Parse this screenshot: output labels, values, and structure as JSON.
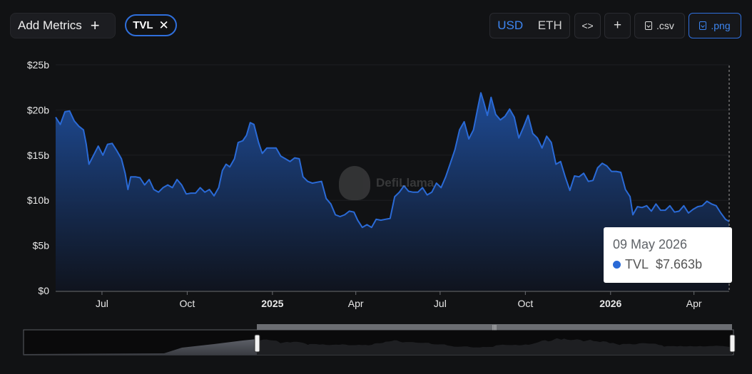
{
  "toolbar": {
    "add_metrics_label": "Add Metrics",
    "add_metrics_icon": "plus-icon",
    "metric_chip_label": "TVL",
    "metric_chip_icon": "close-icon",
    "currency_options": [
      "USD",
      "ETH"
    ],
    "currency_selected": "USD",
    "embed_icon": "code-icon",
    "add_chart_icon": "plus-icon",
    "csv_label": ".csv",
    "png_label": ".png",
    "download_icon": "file-download-icon"
  },
  "watermark": {
    "text": "DefiLlama"
  },
  "tooltip": {
    "date": "09 May 2026",
    "series": "TVL",
    "value": "$7.663b"
  },
  "colors": {
    "background": "#111214",
    "line": "#2a6ad6",
    "accent": "#3d86f2"
  },
  "chart_data": {
    "type": "area",
    "title": "",
    "xlabel": "",
    "ylabel": "",
    "ylim": [
      0,
      25
    ],
    "y_unit": "billion USD",
    "y_ticks": [
      "$0",
      "$5b",
      "$10b",
      "$15b",
      "$20b",
      "$25b"
    ],
    "x_ticks": [
      {
        "label": "Jul",
        "date": "2024-07-01",
        "bold": false
      },
      {
        "label": "Oct",
        "date": "2024-10-01",
        "bold": false
      },
      {
        "label": "2025",
        "date": "2025-01-01",
        "bold": true
      },
      {
        "label": "Apr",
        "date": "2025-04-01",
        "bold": false
      },
      {
        "label": "Jul",
        "date": "2025-07-01",
        "bold": false
      },
      {
        "label": "Oct",
        "date": "2025-10-01",
        "bold": false
      },
      {
        "label": "2026",
        "date": "2026-01-01",
        "bold": true
      },
      {
        "label": "Apr",
        "date": "2026-04-01",
        "bold": false
      }
    ],
    "x_range": [
      "2024-05-12",
      "2026-05-09"
    ],
    "series": [
      {
        "name": "TVL",
        "points": [
          [
            "2024-05-12",
            19.2
          ],
          [
            "2024-05-17",
            18.4
          ],
          [
            "2024-05-22",
            19.8
          ],
          [
            "2024-05-27",
            19.9
          ],
          [
            "2024-06-01",
            18.8
          ],
          [
            "2024-06-06",
            18.2
          ],
          [
            "2024-06-11",
            17.8
          ],
          [
            "2024-06-14",
            16.2
          ],
          [
            "2024-06-17",
            14.0
          ],
          [
            "2024-06-22",
            15.0
          ],
          [
            "2024-06-27",
            16.0
          ],
          [
            "2024-07-02",
            15.0
          ],
          [
            "2024-07-07",
            16.2
          ],
          [
            "2024-07-12",
            16.3
          ],
          [
            "2024-07-17",
            15.5
          ],
          [
            "2024-07-22",
            14.6
          ],
          [
            "2024-07-26",
            13.0
          ],
          [
            "2024-07-29",
            11.2
          ],
          [
            "2024-08-01",
            12.6
          ],
          [
            "2024-08-06",
            12.6
          ],
          [
            "2024-08-11",
            12.5
          ],
          [
            "2024-08-16",
            11.7
          ],
          [
            "2024-08-21",
            12.3
          ],
          [
            "2024-08-26",
            11.2
          ],
          [
            "2024-08-31",
            10.9
          ],
          [
            "2024-09-05",
            11.4
          ],
          [
            "2024-09-10",
            11.7
          ],
          [
            "2024-09-15",
            11.4
          ],
          [
            "2024-09-20",
            12.3
          ],
          [
            "2024-09-25",
            11.7
          ],
          [
            "2024-09-30",
            10.7
          ],
          [
            "2024-10-05",
            10.8
          ],
          [
            "2024-10-10",
            10.8
          ],
          [
            "2024-10-15",
            11.4
          ],
          [
            "2024-10-20",
            10.9
          ],
          [
            "2024-10-25",
            11.2
          ],
          [
            "2024-10-30",
            10.5
          ],
          [
            "2024-11-04",
            11.4
          ],
          [
            "2024-11-08",
            13.3
          ],
          [
            "2024-11-12",
            14.0
          ],
          [
            "2024-11-16",
            13.7
          ],
          [
            "2024-11-21",
            14.6
          ],
          [
            "2024-11-25",
            16.4
          ],
          [
            "2024-11-30",
            16.6
          ],
          [
            "2024-12-04",
            17.2
          ],
          [
            "2024-12-08",
            18.6
          ],
          [
            "2024-12-12",
            18.4
          ],
          [
            "2024-12-17",
            16.4
          ],
          [
            "2024-12-21",
            15.2
          ],
          [
            "2024-12-26",
            15.8
          ],
          [
            "2024-12-31",
            15.8
          ],
          [
            "2025-01-05",
            15.8
          ],
          [
            "2025-01-10",
            14.9
          ],
          [
            "2025-01-15",
            14.6
          ],
          [
            "2025-01-20",
            14.3
          ],
          [
            "2025-01-25",
            14.7
          ],
          [
            "2025-01-30",
            14.6
          ],
          [
            "2025-02-03",
            12.6
          ],
          [
            "2025-02-08",
            12.1
          ],
          [
            "2025-02-13",
            11.9
          ],
          [
            "2025-02-18",
            12.0
          ],
          [
            "2025-02-23",
            12.1
          ],
          [
            "2025-02-28",
            10.2
          ],
          [
            "2025-03-05",
            9.6
          ],
          [
            "2025-03-10",
            8.4
          ],
          [
            "2025-03-15",
            8.2
          ],
          [
            "2025-03-20",
            8.4
          ],
          [
            "2025-03-25",
            8.8
          ],
          [
            "2025-03-30",
            8.7
          ],
          [
            "2025-04-03",
            7.8
          ],
          [
            "2025-04-08",
            7.0
          ],
          [
            "2025-04-13",
            7.3
          ],
          [
            "2025-04-18",
            7.0
          ],
          [
            "2025-04-23",
            7.9
          ],
          [
            "2025-04-28",
            7.8
          ],
          [
            "2025-05-03",
            7.9
          ],
          [
            "2025-05-08",
            8.0
          ],
          [
            "2025-05-13",
            10.4
          ],
          [
            "2025-05-18",
            10.9
          ],
          [
            "2025-05-23",
            11.6
          ],
          [
            "2025-05-28",
            11.0
          ],
          [
            "2025-06-02",
            10.9
          ],
          [
            "2025-06-07",
            10.9
          ],
          [
            "2025-06-12",
            11.4
          ],
          [
            "2025-06-17",
            10.6
          ],
          [
            "2025-06-22",
            10.9
          ],
          [
            "2025-06-27",
            11.9
          ],
          [
            "2025-07-02",
            11.4
          ],
          [
            "2025-07-07",
            12.6
          ],
          [
            "2025-07-12",
            14.1
          ],
          [
            "2025-07-17",
            15.6
          ],
          [
            "2025-07-22",
            17.8
          ],
          [
            "2025-07-27",
            18.7
          ],
          [
            "2025-08-01",
            16.8
          ],
          [
            "2025-08-06",
            17.8
          ],
          [
            "2025-08-11",
            20.4
          ],
          [
            "2025-08-14",
            21.9
          ],
          [
            "2025-08-17",
            20.9
          ],
          [
            "2025-08-21",
            19.4
          ],
          [
            "2025-08-25",
            21.4
          ],
          [
            "2025-08-30",
            19.5
          ],
          [
            "2025-09-04",
            18.9
          ],
          [
            "2025-09-09",
            19.3
          ],
          [
            "2025-09-14",
            20.1
          ],
          [
            "2025-09-19",
            19.2
          ],
          [
            "2025-09-24",
            16.9
          ],
          [
            "2025-09-29",
            18.1
          ],
          [
            "2025-10-04",
            19.4
          ],
          [
            "2025-10-09",
            17.4
          ],
          [
            "2025-10-14",
            16.9
          ],
          [
            "2025-10-19",
            15.8
          ],
          [
            "2025-10-24",
            17.1
          ],
          [
            "2025-10-29",
            16.4
          ],
          [
            "2025-11-03",
            14.0
          ],
          [
            "2025-11-08",
            14.3
          ],
          [
            "2025-11-13",
            12.6
          ],
          [
            "2025-11-18",
            11.1
          ],
          [
            "2025-11-23",
            12.7
          ],
          [
            "2025-11-28",
            12.6
          ],
          [
            "2025-12-03",
            13.0
          ],
          [
            "2025-12-08",
            12.1
          ],
          [
            "2025-12-13",
            12.2
          ],
          [
            "2025-12-18",
            13.6
          ],
          [
            "2025-12-23",
            14.1
          ],
          [
            "2025-12-28",
            13.8
          ],
          [
            "2026-01-02",
            13.2
          ],
          [
            "2026-01-07",
            13.2
          ],
          [
            "2026-01-12",
            13.1
          ],
          [
            "2026-01-17",
            11.2
          ],
          [
            "2026-01-22",
            10.4
          ],
          [
            "2026-01-25",
            8.4
          ],
          [
            "2026-01-30",
            9.3
          ],
          [
            "2026-02-04",
            9.2
          ],
          [
            "2026-02-09",
            9.4
          ],
          [
            "2026-02-14",
            8.8
          ],
          [
            "2026-02-19",
            9.6
          ],
          [
            "2026-02-24",
            8.9
          ],
          [
            "2026-03-01",
            8.9
          ],
          [
            "2026-03-06",
            9.4
          ],
          [
            "2026-03-11",
            8.7
          ],
          [
            "2026-03-16",
            8.8
          ],
          [
            "2026-03-21",
            9.4
          ],
          [
            "2026-03-26",
            8.6
          ],
          [
            "2026-03-31",
            9.0
          ],
          [
            "2026-04-05",
            9.3
          ],
          [
            "2026-04-10",
            9.4
          ],
          [
            "2026-04-15",
            9.9
          ],
          [
            "2026-04-20",
            9.6
          ],
          [
            "2026-04-25",
            9.4
          ],
          [
            "2026-04-30",
            8.6
          ],
          [
            "2026-05-05",
            7.9
          ],
          [
            "2026-05-09",
            7.66
          ]
        ]
      }
    ],
    "grid": "horizontal",
    "legend": "none",
    "brush": {
      "shown": true,
      "selection_start": "2024-05-12",
      "selection_end": "2026-05-09"
    }
  }
}
